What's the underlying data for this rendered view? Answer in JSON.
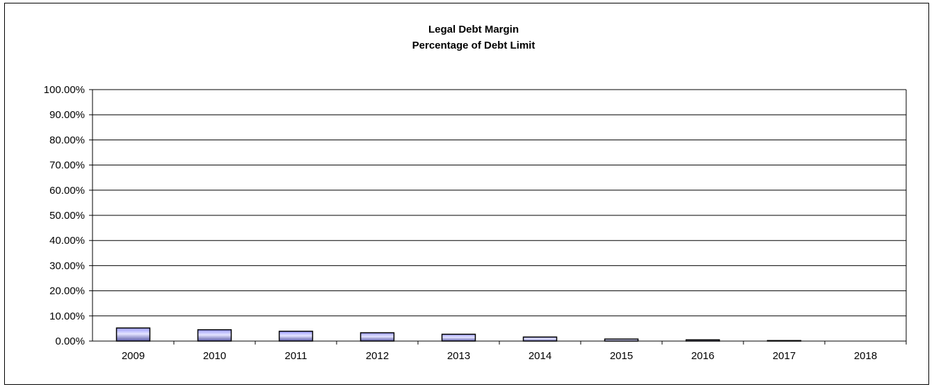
{
  "chart_data": {
    "type": "bar",
    "title": "Legal Debt Margin",
    "subtitle": "Percentage of Debt Limit",
    "xlabel": "",
    "ylabel": "",
    "categories": [
      "2009",
      "2010",
      "2011",
      "2012",
      "2013",
      "2014",
      "2015",
      "2016",
      "2017",
      "2018"
    ],
    "series": [
      {
        "values": [
          5.2,
          4.5,
          3.9,
          3.3,
          2.7,
          1.6,
          0.8,
          0.5,
          0.2,
          0.0
        ]
      }
    ],
    "ylim": [
      0,
      100
    ],
    "yticks": [
      0,
      10,
      20,
      30,
      40,
      50,
      60,
      70,
      80,
      90,
      100
    ],
    "ytick_labels": [
      "0.00%",
      "10.00%",
      "20.00%",
      "30.00%",
      "40.00%",
      "50.00%",
      "60.00%",
      "70.00%",
      "80.00%",
      "90.00%",
      "100.00%"
    ],
    "grid": true,
    "legend": "none",
    "bar_color": "#9999ff",
    "bar_highlight": "#e4e4ff",
    "bar_shadow": "#5a5aa8"
  }
}
